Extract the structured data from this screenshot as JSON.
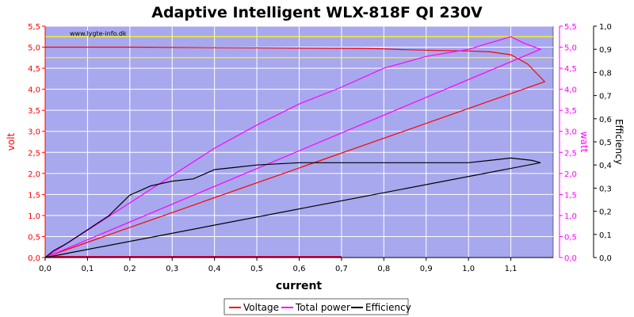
{
  "chart_data": {
    "type": "line",
    "title": "Adaptive Intelligent WLX-818F QI 230V",
    "watermark": "www.lygte-info.dk",
    "xlabel": "current",
    "ylabel_left": "volt",
    "ylabel_right1": "watt",
    "ylabel_right2": "Efficiency",
    "xlim": [
      0,
      1.2
    ],
    "ylim_left": [
      0,
      5.5
    ],
    "ylim_right1": [
      0,
      5.5
    ],
    "ylim_right2": [
      0,
      1.0
    ],
    "x_ticks": [
      "0,0",
      "0,1",
      "0,2",
      "0,3",
      "0,4",
      "0,5",
      "0,6",
      "0,7",
      "0,8",
      "0,9",
      "1,0",
      "1,1"
    ],
    "left_ticks": [
      "0,0",
      "0,5",
      "1,0",
      "1,5",
      "2,0",
      "2,5",
      "3,0",
      "3,5",
      "4,0",
      "4,5",
      "5,0",
      "5,5"
    ],
    "right1_ticks": [
      "0,0",
      "0,5",
      "1,0",
      "1,5",
      "2,0",
      "2,5",
      "3,0",
      "3,5",
      "4,0",
      "4,5",
      "5,0",
      "5,5"
    ],
    "right2_ticks": [
      "0,0",
      "0,1",
      "0,2",
      "0,3",
      "0,4",
      "0,5",
      "0,6",
      "0,7",
      "0,8",
      "0,9",
      "1,0"
    ],
    "reference_lines": [
      {
        "axis": "left",
        "value": 5.25,
        "color": "#ffff00"
      },
      {
        "axis": "left",
        "value": 4.75,
        "color": "#ffff00"
      }
    ],
    "series": [
      {
        "name": "Voltage",
        "axis": "left",
        "color": "#ff0000",
        "points": [
          [
            0,
            5.0
          ],
          [
            0.2,
            5.0
          ],
          [
            0.4,
            4.99
          ],
          [
            0.6,
            4.98
          ],
          [
            0.75,
            4.97
          ],
          [
            0.8,
            4.96
          ],
          [
            0.85,
            4.94
          ],
          [
            0.9,
            4.93
          ],
          [
            0.95,
            4.92
          ],
          [
            1.0,
            4.91
          ],
          [
            1.05,
            4.89
          ],
          [
            1.1,
            4.82
          ],
          [
            1.14,
            4.6
          ],
          [
            1.18,
            4.18
          ],
          [
            0,
            0.01
          ]
        ]
      },
      {
        "name": "Total power",
        "axis": "right1",
        "color": "#ff00ff",
        "points": [
          [
            0,
            0
          ],
          [
            0.1,
            0.65
          ],
          [
            0.2,
            1.3
          ],
          [
            0.3,
            1.95
          ],
          [
            0.4,
            2.6
          ],
          [
            0.5,
            3.15
          ],
          [
            0.6,
            3.65
          ],
          [
            0.7,
            4.05
          ],
          [
            0.8,
            4.5
          ],
          [
            0.9,
            4.78
          ],
          [
            1.0,
            4.95
          ],
          [
            1.05,
            5.1
          ],
          [
            1.1,
            5.25
          ],
          [
            1.13,
            5.1
          ],
          [
            1.17,
            4.95
          ],
          [
            0,
            0
          ]
        ]
      },
      {
        "name": "Efficiency",
        "axis": "right2",
        "color": "#000000",
        "points": [
          [
            0,
            0
          ],
          [
            0.02,
            0.03
          ],
          [
            0.05,
            0.06
          ],
          [
            0.1,
            0.12
          ],
          [
            0.15,
            0.18
          ],
          [
            0.2,
            0.27
          ],
          [
            0.25,
            0.31
          ],
          [
            0.3,
            0.33
          ],
          [
            0.35,
            0.34
          ],
          [
            0.4,
            0.38
          ],
          [
            0.45,
            0.39
          ],
          [
            0.5,
            0.4
          ],
          [
            0.6,
            0.41
          ],
          [
            0.7,
            0.41
          ],
          [
            0.8,
            0.41
          ],
          [
            0.9,
            0.41
          ],
          [
            1.0,
            0.41
          ],
          [
            1.05,
            0.42
          ],
          [
            1.1,
            0.43
          ],
          [
            1.15,
            0.42
          ],
          [
            1.17,
            0.41
          ],
          [
            0,
            0
          ]
        ]
      }
    ],
    "extra_segment": {
      "color": "#cc0044",
      "x": [
        0,
        0.7
      ],
      "y_left": 0.02
    },
    "legend": {
      "position": "bottom-center",
      "entries": [
        "Voltage",
        "Total power",
        "Efficiency"
      ]
    }
  }
}
